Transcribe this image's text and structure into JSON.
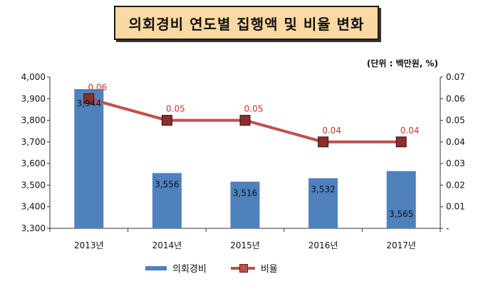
{
  "title": "의회경비 연도별 집행액 및 비율 변화",
  "unit_label": "(단위 : 백만원, %)",
  "chart_data": {
    "type": "bar",
    "categories": [
      "2013년",
      "2014년",
      "2015년",
      "2016년",
      "2017년"
    ],
    "series": [
      {
        "name": "의회경비",
        "type": "bar",
        "axis": "left",
        "values": [
          3944,
          3556,
          3516,
          3532,
          3565
        ],
        "labels": [
          "3,944",
          "3,556",
          "3,516",
          "3,532",
          "3,565"
        ],
        "color": "#4f81bd"
      },
      {
        "name": "비율",
        "type": "line",
        "axis": "right",
        "values": [
          0.06,
          0.05,
          0.05,
          0.04,
          0.04
        ],
        "labels": [
          "0.06",
          "0.05",
          "0.05",
          "0.04",
          "0.04"
        ],
        "color": "#c0504d"
      }
    ],
    "y_left": {
      "min": 3300,
      "max": 4000,
      "ticks": [
        "3,300",
        "3,400",
        "3,500",
        "3,600",
        "3,700",
        "3,800",
        "3,900",
        "4,000"
      ]
    },
    "y_right": {
      "min": 0,
      "max": 0.07,
      "ticks": [
        "-",
        "0.01",
        "0.02",
        "0.03",
        "0.04",
        "0.05",
        "0.06",
        "0.07"
      ]
    },
    "legend_position": "bottom",
    "grid": false
  }
}
